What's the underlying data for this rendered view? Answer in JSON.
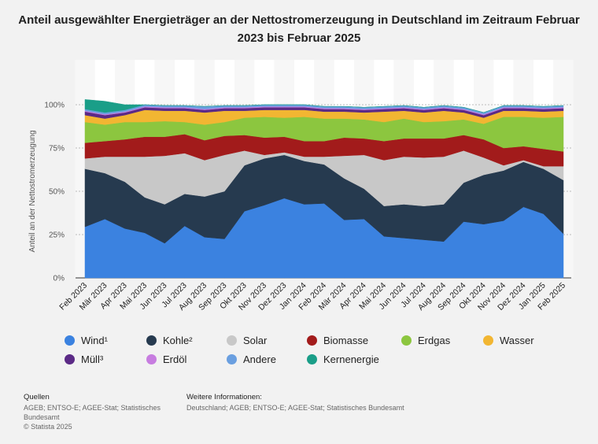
{
  "title": "Anteil ausgewählter Energieträger an der Nettostromerzeugung in Deutschland im Zeitraum Februar 2023 bis Februar 2025",
  "chart_data": {
    "type": "area",
    "stacked": true,
    "ylabel": "Anteil an der Nettostromerzeugung",
    "ylim": [
      0,
      100
    ],
    "y_ticks": [
      "0%",
      "25%",
      "50%",
      "75%",
      "100%"
    ],
    "categories": [
      "Feb 2023",
      "Mär 2023",
      "Apr 2023",
      "Mai 2023",
      "Jun 2023",
      "Jul 2023",
      "Aug 2023",
      "Sep 2023",
      "Okt 2023",
      "Nov 2023",
      "Dez 2023",
      "Jan 2024",
      "Feb 2024",
      "Mär 2024",
      "Apr 2024",
      "Mai 2024",
      "Jun 2024",
      "Jul 2024",
      "Aug 2024",
      "Sep 2024",
      "Okt 2024",
      "Nov 2024",
      "Dez 2024",
      "Jan 2025",
      "Feb 2025"
    ],
    "series": [
      {
        "name": "Wind¹",
        "color": "#3b82e0",
        "values": [
          29.5,
          34,
          28.5,
          26,
          20,
          30,
          23.5,
          22.5,
          38.5,
          42,
          46,
          42.5,
          43,
          33.5,
          34,
          24,
          23,
          22,
          21,
          32.5,
          31,
          33,
          41,
          37,
          25.5
        ]
      },
      {
        "name": "Kohle²",
        "color": "#263a4f",
        "values": [
          33.5,
          26.5,
          27,
          20.5,
          22.5,
          18.5,
          23.5,
          27.5,
          26.5,
          27,
          25,
          25,
          22.5,
          24,
          17.5,
          17.5,
          19.5,
          19.5,
          21.5,
          22.5,
          28.5,
          29,
          26,
          26,
          31
        ]
      },
      {
        "name": "Solar",
        "color": "#c8c8c8",
        "values": [
          6,
          9.5,
          14.5,
          23.5,
          28,
          23.5,
          21,
          21,
          8.5,
          2,
          1.5,
          2.5,
          4.5,
          13,
          19.5,
          26.5,
          27.5,
          28,
          27.5,
          18.5,
          10,
          3,
          1,
          1.5,
          8
        ]
      },
      {
        "name": "Biomasse",
        "color": "#a21b1b",
        "values": [
          9,
          9,
          10,
          11.5,
          11,
          11,
          11.5,
          11,
          9,
          10,
          9,
          9,
          9,
          10.5,
          9.5,
          11,
          10.5,
          11,
          10.5,
          9,
          10.5,
          10,
          8,
          10,
          8.5
        ]
      },
      {
        "name": "Erdgas",
        "color": "#8cc63f",
        "values": [
          12,
          9.5,
          10,
          8.5,
          9,
          7,
          9,
          8,
          10,
          12,
          11,
          14,
          13,
          11,
          11,
          11,
          11.5,
          9.5,
          10,
          9,
          9,
          18,
          17,
          18,
          20
        ]
      },
      {
        "name": "Wasser",
        "color": "#f2b632",
        "values": [
          4,
          3.5,
          4,
          7,
          6,
          6.5,
          7,
          6.5,
          4,
          4,
          4.5,
          4,
          4,
          4,
          4,
          6,
          4.5,
          5.5,
          6,
          4,
          3.5,
          3.5,
          3.5,
          3.5,
          3.5
        ]
      },
      {
        "name": "Müll³",
        "color": "#5b2a86",
        "values": [
          2,
          2,
          1.5,
          1.5,
          1.5,
          1.5,
          1.5,
          1.5,
          1.5,
          1.5,
          1.5,
          1.5,
          1.5,
          1.5,
          1.5,
          1.5,
          1.5,
          1.5,
          1.5,
          1.5,
          1.5,
          1.5,
          1.5,
          1.5,
          1.5
        ]
      },
      {
        "name": "Erdöl",
        "color": "#c77de0",
        "values": [
          0.5,
          0.5,
          0.5,
          0.5,
          0.5,
          0.5,
          0.5,
          0.5,
          0.5,
          0.5,
          0.5,
          0.5,
          0.5,
          0.5,
          0.5,
          0.5,
          0.5,
          0.5,
          0.5,
          0.5,
          0.5,
          0.5,
          0.5,
          0.5,
          0.5
        ]
      },
      {
        "name": "Andere",
        "color": "#6a9fe0",
        "values": [
          1,
          1,
          1,
          1,
          1,
          1,
          1.5,
          1,
          1,
          1,
          1,
          1,
          1,
          1,
          1,
          1,
          1,
          1,
          1,
          1,
          1,
          1,
          1,
          1,
          1
        ]
      },
      {
        "name": "Kernenergie",
        "color": "#1a9e88",
        "values": [
          5.5,
          6.5,
          3,
          0,
          0,
          0,
          0,
          0,
          0,
          0,
          0,
          0,
          0,
          0,
          0,
          0,
          0,
          0,
          0,
          0,
          0,
          0,
          0,
          0,
          0
        ]
      }
    ]
  },
  "legend": {
    "items": [
      {
        "label": "Wind¹",
        "color": "#3b82e0"
      },
      {
        "label": "Kohle²",
        "color": "#263a4f"
      },
      {
        "label": "Solar",
        "color": "#c8c8c8"
      },
      {
        "label": "Biomasse",
        "color": "#a21b1b"
      },
      {
        "label": "Erdgas",
        "color": "#8cc63f"
      },
      {
        "label": "Wasser",
        "color": "#f2b632"
      },
      {
        "label": "Müll³",
        "color": "#5b2a86"
      },
      {
        "label": "Erdöl",
        "color": "#c77de0"
      },
      {
        "label": "Andere",
        "color": "#6a9fe0"
      },
      {
        "label": "Kernenergie",
        "color": "#1a9e88"
      }
    ]
  },
  "sources": {
    "heading": "Quellen",
    "line1": "AGEB; ENTSO-E; AGEE-Stat; Statistisches",
    "line2": "Bundesamt",
    "line3": "© Statista 2025"
  },
  "info": {
    "heading": "Weitere Informationen:",
    "line1": "Deutschland; AGEB; ENTSO-E; AGEE-Stat; Statistisches Bundesamt"
  }
}
